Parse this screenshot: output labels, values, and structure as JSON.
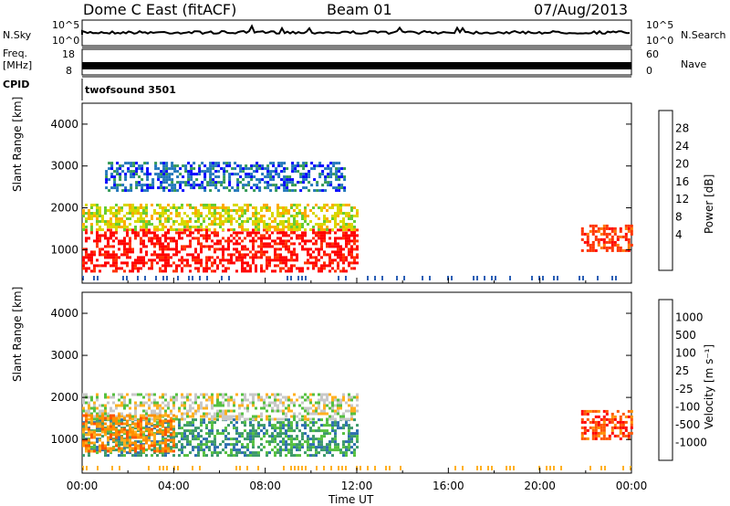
{
  "header": {
    "title": "Dome C East (fitACF)",
    "beam": "Beam 01",
    "date": "07/Aug/2013"
  },
  "strip_labels": {
    "nsky": "N.Sky",
    "nsky_top": "10^5",
    "nsky_bottom": "10^0",
    "nsearch": "N.Search",
    "nsearch_top": "10^5",
    "nsearch_bottom": "10^0",
    "freq": "Freq.",
    "freq_unit": "[MHz]",
    "freq_top": "18",
    "freq_bottom": "8",
    "nave": "Nave",
    "nave_top": "60",
    "nave_bottom": "0",
    "cpid": "CPID",
    "cpid_value": "twofsound 3501"
  },
  "chart_data": [
    {
      "type": "heatmap",
      "name": "power-panel",
      "xlabel": "",
      "ylabel": "Slant Range [km]",
      "ylim": [
        200,
        4500
      ],
      "xlim_hours": [
        0,
        24
      ],
      "y_ticks": [
        1000,
        2000,
        3000,
        4000
      ],
      "colorbar": {
        "label": "Power [dB]",
        "ticks": [
          "28",
          "24",
          "20",
          "16",
          "12",
          "8",
          "4"
        ],
        "colors": [
          "#ff0000",
          "#ff3300",
          "#ff7700",
          "#ffaa00",
          "#d8d800",
          "#66cc33",
          "#339955",
          "#2277bb",
          "#0000ff"
        ]
      },
      "regions": [
        {
          "h0": 0.0,
          "h1": 12.0,
          "r0": 500,
          "r1": 1500,
          "level": 8
        },
        {
          "h0": 0.0,
          "h1": 12.0,
          "r0": 1500,
          "r1": 2100,
          "level": 4
        },
        {
          "h0": 1.0,
          "h1": 11.5,
          "r0": 2400,
          "r1": 3100,
          "level": 1
        },
        {
          "h0": 21.8,
          "h1": 24.0,
          "r0": 1000,
          "r1": 1600,
          "level": 7
        }
      ]
    },
    {
      "type": "heatmap",
      "name": "velocity-panel",
      "xlabel": "Time UT",
      "ylabel": "Slant Range [km]",
      "ylim": [
        200,
        4500
      ],
      "xlim_hours": [
        0,
        24
      ],
      "y_ticks": [
        1000,
        2000,
        3000,
        4000
      ],
      "x_ticks": [
        "00:00",
        "04:00",
        "08:00",
        "12:00",
        "16:00",
        "20:00",
        "00:00"
      ],
      "colorbar": {
        "label": "Velocity [m s⁻¹]",
        "ticks": [
          "1000",
          "500",
          "100",
          "25",
          "-25",
          "-100",
          "-500",
          "-1000"
        ],
        "colors": [
          "#2040c0",
          "#2f6fb0",
          "#3d9a6a",
          "#55c040",
          "#c8c8c8",
          "#ffb020",
          "#ff9000",
          "#ff5500",
          "#ff0000"
        ]
      },
      "regions": [
        {
          "h0": 0.0,
          "h1": 12.0,
          "r0": 600,
          "r1": 1500,
          "level": 6
        },
        {
          "h0": 0.0,
          "h1": 12.0,
          "r0": 1500,
          "r1": 2100,
          "level": 4
        },
        {
          "h0": 0.0,
          "h1": 4.0,
          "r0": 700,
          "r1": 1600,
          "level": 2
        },
        {
          "h0": 21.8,
          "h1": 24.0,
          "r0": 1000,
          "r1": 1700,
          "level": 1
        }
      ]
    }
  ]
}
